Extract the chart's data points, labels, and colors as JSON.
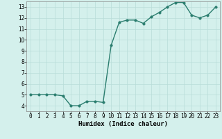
{
  "x": [
    0,
    1,
    2,
    3,
    4,
    5,
    6,
    7,
    8,
    9,
    10,
    11,
    12,
    13,
    14,
    15,
    16,
    17,
    18,
    19,
    20,
    21,
    22,
    23
  ],
  "y": [
    5.0,
    5.0,
    5.0,
    5.0,
    4.9,
    4.0,
    4.0,
    4.4,
    4.4,
    4.3,
    9.5,
    11.6,
    11.8,
    11.8,
    11.5,
    12.1,
    12.5,
    13.0,
    13.4,
    13.4,
    12.25,
    12.0,
    12.25,
    13.0
  ],
  "line_color": "#2a7d6e",
  "marker_color": "#2a7d6e",
  "bg_color": "#d4f0ec",
  "grid_color": "#b8ddd8",
  "xlabel": "Humidex (Indice chaleur)",
  "xlim": [
    -0.5,
    23.5
  ],
  "ylim": [
    3.5,
    13.5
  ],
  "yticks": [
    4,
    5,
    6,
    7,
    8,
    9,
    10,
    11,
    12,
    13
  ],
  "xticks": [
    0,
    1,
    2,
    3,
    4,
    5,
    6,
    7,
    8,
    9,
    10,
    11,
    12,
    13,
    14,
    15,
    16,
    17,
    18,
    19,
    20,
    21,
    22,
    23
  ],
  "label_fontsize": 6.5,
  "tick_fontsize": 5.5,
  "line_width": 1.0,
  "marker_size": 2.5
}
